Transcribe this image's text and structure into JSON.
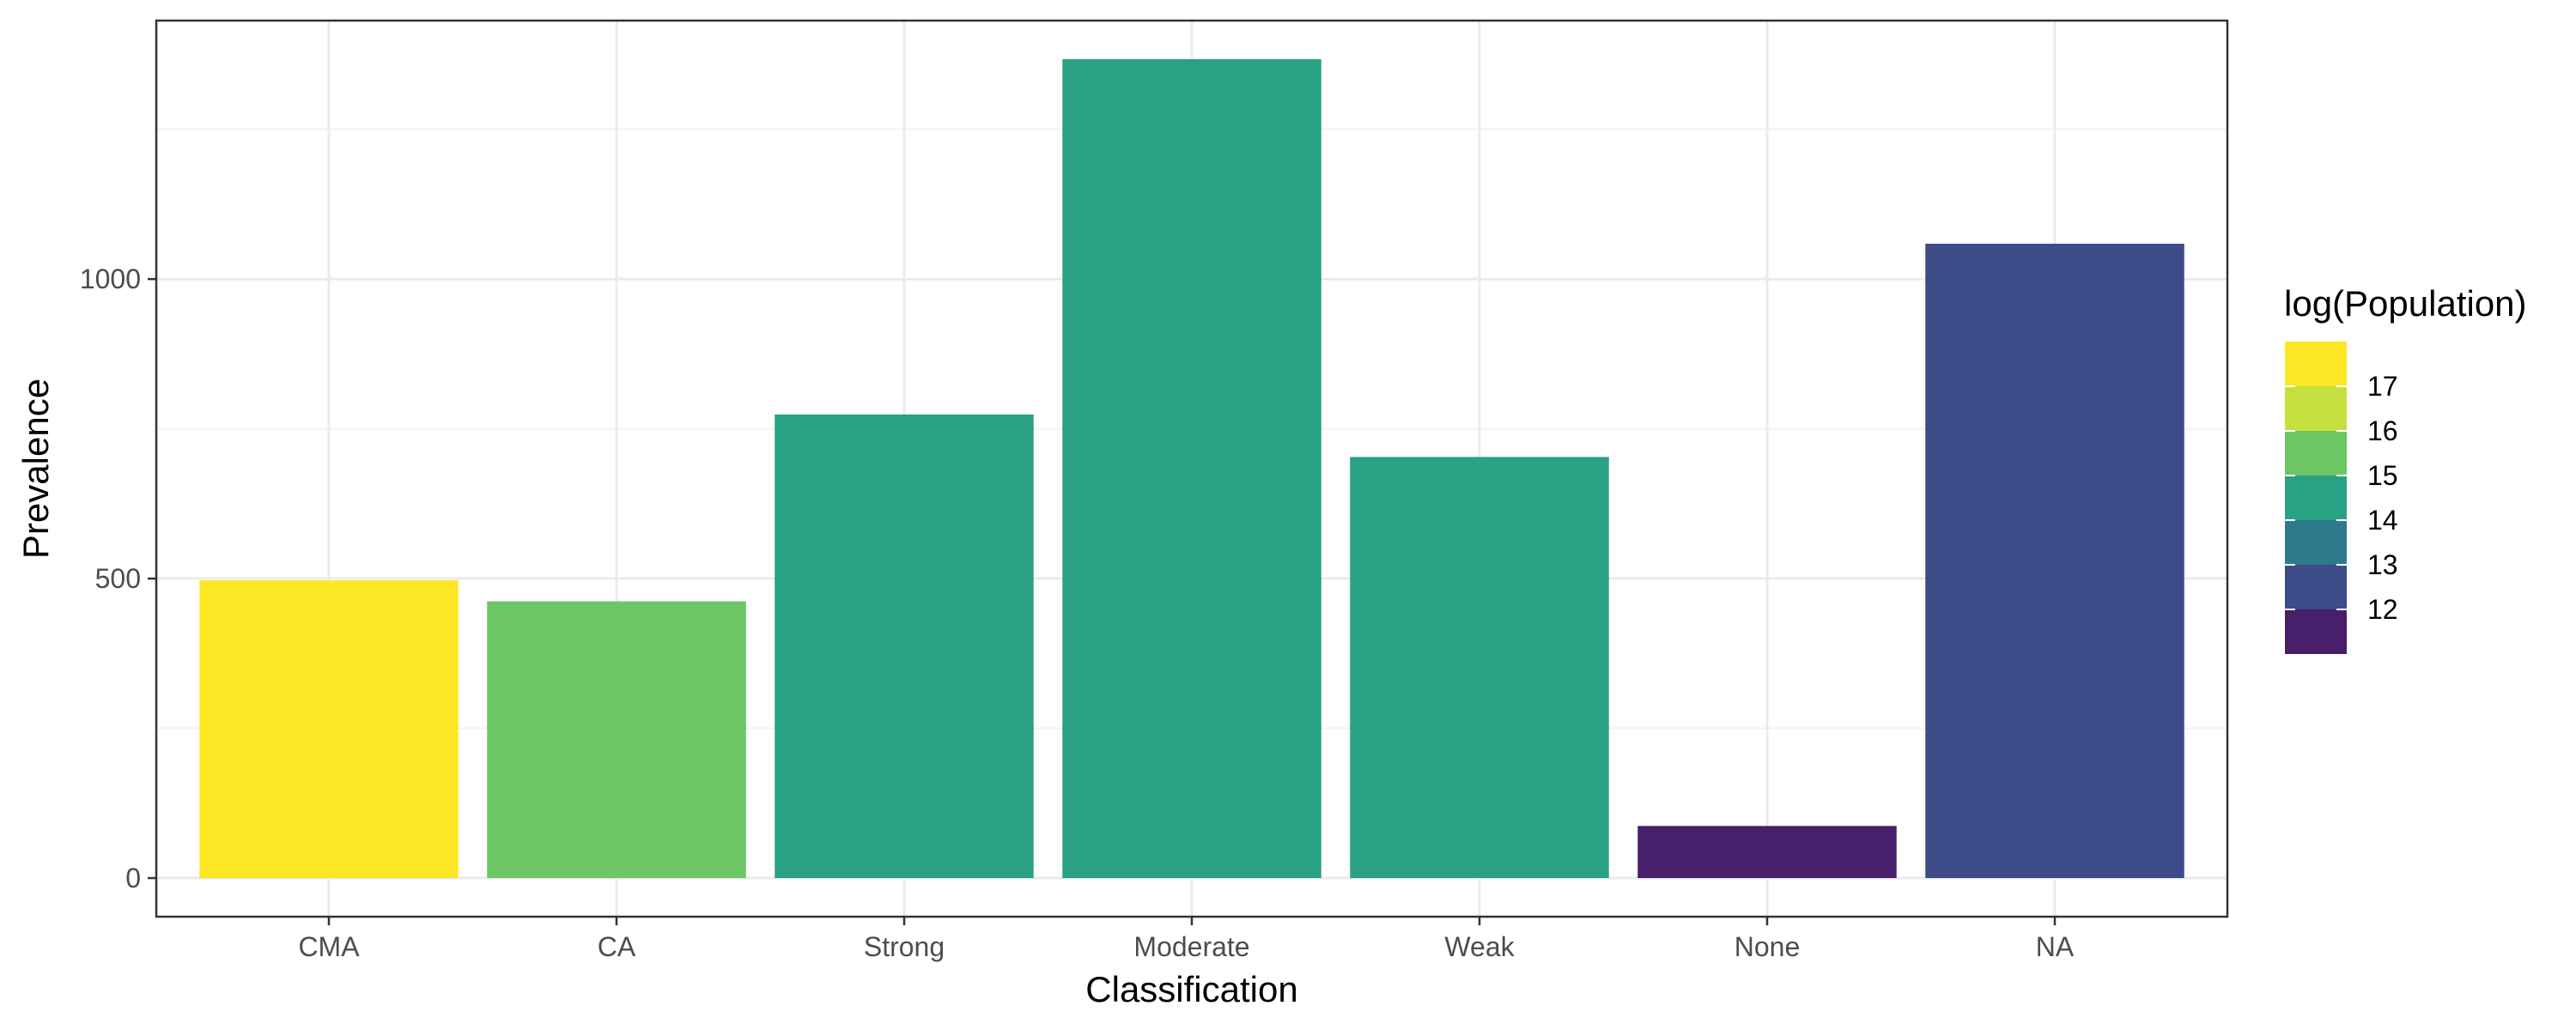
{
  "chart_data": {
    "type": "bar",
    "categories": [
      "CMA",
      "CA",
      "Strong",
      "Moderate",
      "Weak",
      "None",
      "NA"
    ],
    "values": [
      497,
      462,
      774,
      1367,
      703,
      87,
      1059
    ],
    "color_values": [
      17.3,
      15.8,
      14.8,
      14.8,
      14.8,
      12.2,
      13.2
    ],
    "bar_colors": [
      "#FDE725",
      "#6CC664",
      "#2AA185",
      "#2AA185",
      "#2AA185",
      "#481F6A",
      "#3D4C89"
    ],
    "xlabel": "Classification",
    "ylabel": "Prevalence",
    "ylim": [
      0,
      1435
    ],
    "yticks": [
      0,
      500,
      1000
    ],
    "ytick_labels": [
      "0",
      "500",
      "1000"
    ],
    "grid": true,
    "legend": {
      "title": "log(Population)",
      "placement": "right",
      "type": "colorbar-binned",
      "labels": [
        "17",
        "16",
        "15",
        "14",
        "13",
        "12"
      ],
      "colors": [
        "#FDE725",
        "#C5E03E",
        "#6CC664",
        "#2AA185",
        "#2D7A8D",
        "#3D4C89",
        "#481F6A"
      ]
    }
  }
}
